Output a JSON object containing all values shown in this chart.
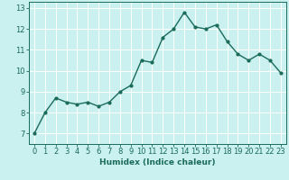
{
  "x": [
    0,
    1,
    2,
    3,
    4,
    5,
    6,
    7,
    8,
    9,
    10,
    11,
    12,
    13,
    14,
    15,
    16,
    17,
    18,
    19,
    20,
    21,
    22,
    23
  ],
  "y": [
    7.0,
    8.0,
    8.7,
    8.5,
    8.4,
    8.5,
    8.3,
    8.5,
    9.0,
    9.3,
    10.5,
    10.4,
    11.6,
    12.0,
    12.8,
    12.1,
    12.0,
    12.2,
    11.4,
    10.8,
    10.5,
    10.8,
    10.5,
    9.9
  ],
  "line_color": "#1a6b5a",
  "marker": "o",
  "markersize": 2.0,
  "linewidth": 1.0,
  "bg_color": "#caf0f0",
  "grid_color": "#ffffff",
  "xlabel": "Humidex (Indice chaleur)",
  "xlabel_fontsize": 6.5,
  "tick_fontsize": 6.0,
  "ylim": [
    6.5,
    13.3
  ],
  "xlim": [
    -0.5,
    23.5
  ],
  "yticks": [
    7,
    8,
    9,
    10,
    11,
    12,
    13
  ],
  "xticks": [
    0,
    1,
    2,
    3,
    4,
    5,
    6,
    7,
    8,
    9,
    10,
    11,
    12,
    13,
    14,
    15,
    16,
    17,
    18,
    19,
    20,
    21,
    22,
    23
  ]
}
